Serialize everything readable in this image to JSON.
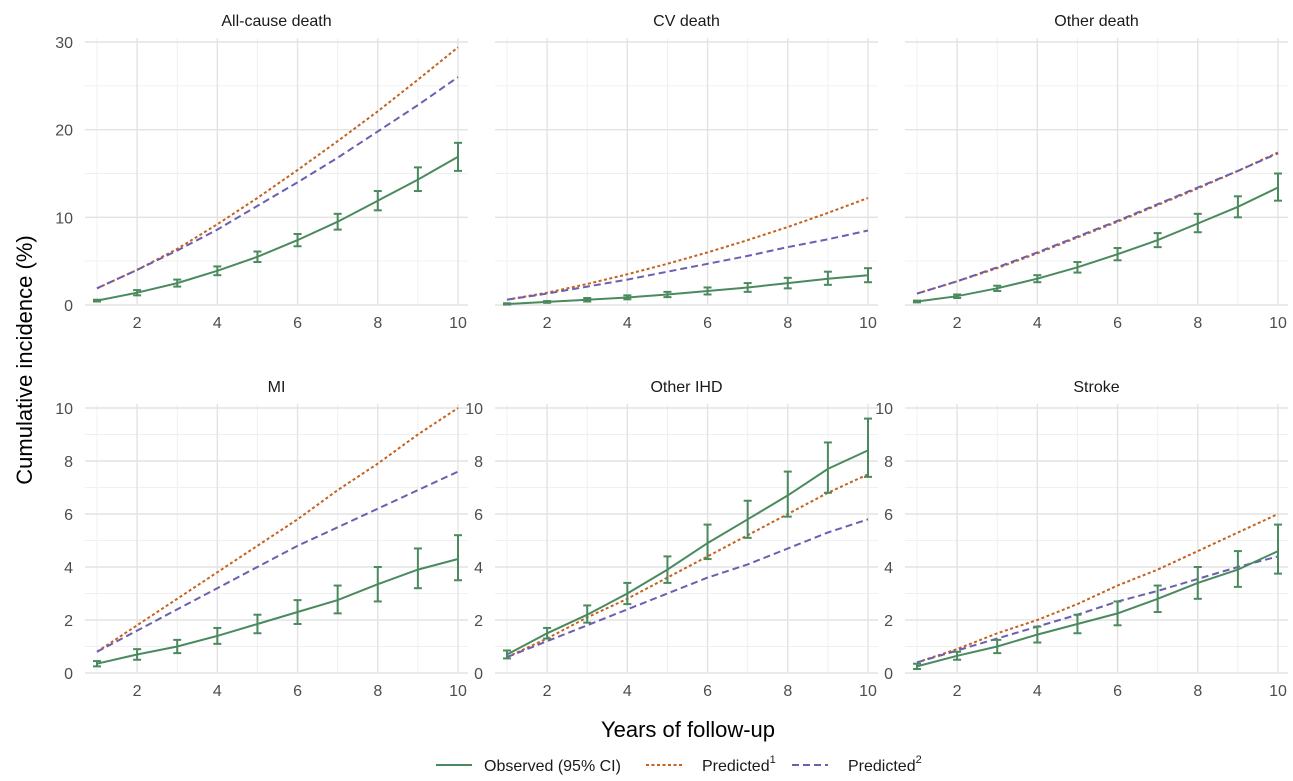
{
  "chart_data": {
    "type": "line",
    "xlabel": "Years of follow-up",
    "ylabel": "Cumulative incidence (%)",
    "legend": {
      "position": "bottom",
      "items": [
        {
          "label": "Observed (95% CI)",
          "sup": "",
          "color": "#4a8a5e",
          "dash": "solid"
        },
        {
          "label": "Predicted",
          "sup": "1",
          "color": "#c4621f",
          "dash": "dotted"
        },
        {
          "label": "Predicted",
          "sup": "2",
          "color": "#6b5fb0",
          "dash": "dashed"
        }
      ]
    },
    "panels": [
      {
        "title": "All-cause death",
        "xlim": [
          1,
          10
        ],
        "ylim": [
          0,
          30
        ],
        "xticks": [
          2,
          4,
          6,
          8,
          10
        ],
        "yticks": [
          0,
          10,
          20,
          30
        ],
        "series": [
          {
            "key": "observed",
            "x": [
              1,
              2,
              3,
              4,
              5,
              6,
              7,
              8,
              9,
              10
            ],
            "y": [
              0.5,
              1.4,
              2.5,
              3.9,
              5.5,
              7.4,
              9.5,
              11.9,
              14.3,
              16.9
            ],
            "lower": [
              0.4,
              1.1,
              2.1,
              3.4,
              4.9,
              6.7,
              8.6,
              10.8,
              13.0,
              15.3
            ],
            "upper": [
              0.6,
              1.7,
              2.9,
              4.4,
              6.1,
              8.1,
              10.4,
              13.0,
              15.7,
              18.5
            ]
          },
          {
            "key": "predicted1",
            "x": [
              1,
              2,
              3,
              4,
              5,
              6,
              7,
              8,
              9,
              10
            ],
            "y": [
              1.9,
              4.0,
              6.4,
              9.2,
              12.2,
              15.4,
              18.7,
              22.1,
              25.7,
              29.4
            ]
          },
          {
            "key": "predicted2",
            "x": [
              1,
              2,
              3,
              4,
              5,
              6,
              7,
              8,
              9,
              10
            ],
            "y": [
              1.9,
              4.0,
              6.2,
              8.6,
              11.3,
              14.0,
              16.8,
              19.8,
              22.8,
              26.0
            ]
          }
        ]
      },
      {
        "title": "CV death",
        "xlim": [
          1,
          10
        ],
        "ylim": [
          0,
          30
        ],
        "xticks": [
          2,
          4,
          6,
          8,
          10
        ],
        "yticks": [
          0,
          10,
          20,
          30
        ],
        "series": [
          {
            "key": "observed",
            "x": [
              1,
              2,
              3,
              4,
              5,
              6,
              7,
              8,
              9,
              10
            ],
            "y": [
              0.1,
              0.35,
              0.6,
              0.85,
              1.2,
              1.6,
              2.0,
              2.5,
              3.0,
              3.4
            ],
            "lower": [
              0.05,
              0.25,
              0.4,
              0.65,
              0.9,
              1.2,
              1.5,
              1.9,
              2.3,
              2.6
            ],
            "upper": [
              0.2,
              0.45,
              0.8,
              1.1,
              1.5,
              2.0,
              2.5,
              3.1,
              3.8,
              4.2
            ]
          },
          {
            "key": "predicted1",
            "x": [
              1,
              2,
              3,
              4,
              5,
              6,
              7,
              8,
              9,
              10
            ],
            "y": [
              0.6,
              1.4,
              2.4,
              3.5,
              4.7,
              6.0,
              7.4,
              8.9,
              10.5,
              12.2
            ]
          },
          {
            "key": "predicted2",
            "x": [
              1,
              2,
              3,
              4,
              5,
              6,
              7,
              8,
              9,
              10
            ],
            "y": [
              0.6,
              1.3,
              2.1,
              2.9,
              3.8,
              4.7,
              5.6,
              6.6,
              7.5,
              8.5
            ]
          }
        ]
      },
      {
        "title": "Other death",
        "xlim": [
          1,
          10
        ],
        "ylim": [
          0,
          30
        ],
        "xticks": [
          2,
          4,
          6,
          8,
          10
        ],
        "yticks": [
          0,
          10,
          20,
          30
        ],
        "series": [
          {
            "key": "observed",
            "x": [
              1,
              2,
              3,
              4,
              5,
              6,
              7,
              8,
              9,
              10
            ],
            "y": [
              0.4,
              1.0,
              1.9,
              3.0,
              4.3,
              5.8,
              7.4,
              9.3,
              11.2,
              13.4
            ],
            "lower": [
              0.3,
              0.8,
              1.6,
              2.6,
              3.7,
              5.1,
              6.6,
              8.3,
              10.0,
              11.9
            ],
            "upper": [
              0.5,
              1.2,
              2.2,
              3.4,
              4.9,
              6.5,
              8.2,
              10.4,
              12.4,
              15.0
            ]
          },
          {
            "key": "predicted1",
            "x": [
              1,
              2,
              3,
              4,
              5,
              6,
              7,
              8,
              9,
              10
            ],
            "y": [
              1.3,
              2.7,
              4.2,
              5.9,
              7.7,
              9.5,
              11.4,
              13.3,
              15.3,
              17.4
            ]
          },
          {
            "key": "predicted2",
            "x": [
              1,
              2,
              3,
              4,
              5,
              6,
              7,
              8,
              9,
              10
            ],
            "y": [
              1.3,
              2.7,
              4.3,
              6.0,
              7.8,
              9.6,
              11.5,
              13.4,
              15.3,
              17.3
            ]
          }
        ]
      },
      {
        "title": "MI",
        "xlim": [
          1,
          10
        ],
        "ylim": [
          0,
          10
        ],
        "xticks": [
          2,
          4,
          6,
          8,
          10
        ],
        "yticks": [
          0,
          2,
          4,
          6,
          8,
          10
        ],
        "series": [
          {
            "key": "observed",
            "x": [
              1,
              2,
              3,
              4,
              5,
              6,
              7,
              8,
              9,
              10
            ],
            "y": [
              0.35,
              0.7,
              1.0,
              1.4,
              1.85,
              2.3,
              2.75,
              3.35,
              3.9,
              4.3
            ],
            "lower": [
              0.25,
              0.5,
              0.75,
              1.1,
              1.5,
              1.85,
              2.25,
              2.7,
              3.2,
              3.5
            ],
            "upper": [
              0.45,
              0.9,
              1.25,
              1.7,
              2.2,
              2.75,
              3.3,
              4.0,
              4.7,
              5.2
            ]
          },
          {
            "key": "predicted1",
            "x": [
              1,
              2,
              3,
              4,
              5,
              6,
              7,
              8,
              9,
              10
            ],
            "y": [
              0.8,
              1.8,
              2.8,
              3.8,
              4.8,
              5.8,
              6.9,
              7.9,
              9.0,
              10.0
            ]
          },
          {
            "key": "predicted2",
            "x": [
              1,
              2,
              3,
              4,
              5,
              6,
              7,
              8,
              9,
              10
            ],
            "y": [
              0.8,
              1.6,
              2.4,
              3.2,
              4.0,
              4.8,
              5.5,
              6.2,
              6.9,
              7.6
            ]
          }
        ]
      },
      {
        "title": "Other IHD",
        "xlim": [
          1,
          10
        ],
        "ylim": [
          0,
          10
        ],
        "xticks": [
          2,
          4,
          6,
          8,
          10
        ],
        "yticks": [
          0,
          2,
          4,
          6,
          8,
          10
        ],
        "series": [
          {
            "key": "observed",
            "x": [
              1,
              2,
              3,
              4,
              5,
              6,
              7,
              8,
              9,
              10
            ],
            "y": [
              0.7,
              1.5,
              2.2,
              3.0,
              3.9,
              4.9,
              5.8,
              6.7,
              7.7,
              8.4
            ],
            "lower": [
              0.55,
              1.3,
              1.9,
              2.6,
              3.4,
              4.3,
              5.1,
              5.9,
              6.8,
              7.4
            ],
            "upper": [
              0.85,
              1.7,
              2.55,
              3.4,
              4.4,
              5.6,
              6.5,
              7.6,
              8.7,
              9.6
            ]
          },
          {
            "key": "predicted1",
            "x": [
              1,
              2,
              3,
              4,
              5,
              6,
              7,
              8,
              9,
              10
            ],
            "y": [
              0.6,
              1.3,
              2.1,
              2.8,
              3.6,
              4.4,
              5.2,
              6.0,
              6.8,
              7.5
            ]
          },
          {
            "key": "predicted2",
            "x": [
              1,
              2,
              3,
              4,
              5,
              6,
              7,
              8,
              9,
              10
            ],
            "y": [
              0.6,
              1.2,
              1.8,
              2.4,
              3.0,
              3.6,
              4.1,
              4.7,
              5.3,
              5.8
            ]
          }
        ]
      },
      {
        "title": "Stroke",
        "xlim": [
          1,
          10
        ],
        "ylim": [
          0,
          10
        ],
        "xticks": [
          2,
          4,
          6,
          8,
          10
        ],
        "yticks": [
          0,
          2,
          4,
          6,
          8,
          10
        ],
        "series": [
          {
            "key": "observed",
            "x": [
              1,
              2,
              3,
              4,
              5,
              6,
              7,
              8,
              9,
              10
            ],
            "y": [
              0.25,
              0.65,
              1.0,
              1.45,
              1.85,
              2.25,
              2.8,
              3.4,
              3.9,
              4.6
            ],
            "lower": [
              0.15,
              0.5,
              0.75,
              1.15,
              1.5,
              1.8,
              2.3,
              2.8,
              3.25,
              3.75
            ],
            "upper": [
              0.35,
              0.8,
              1.25,
              1.75,
              2.2,
              2.7,
              3.3,
              4.0,
              4.6,
              5.6
            ]
          },
          {
            "key": "predicted1",
            "x": [
              1,
              2,
              3,
              4,
              5,
              6,
              7,
              8,
              9,
              10
            ],
            "y": [
              0.4,
              0.9,
              1.5,
              2.0,
              2.6,
              3.3,
              3.9,
              4.6,
              5.3,
              6.0
            ]
          },
          {
            "key": "predicted2",
            "x": [
              1,
              2,
              3,
              4,
              5,
              6,
              7,
              8,
              9,
              10
            ],
            "y": [
              0.4,
              0.85,
              1.3,
              1.75,
              2.2,
              2.7,
              3.1,
              3.55,
              4.0,
              4.4
            ]
          }
        ]
      }
    ]
  }
}
